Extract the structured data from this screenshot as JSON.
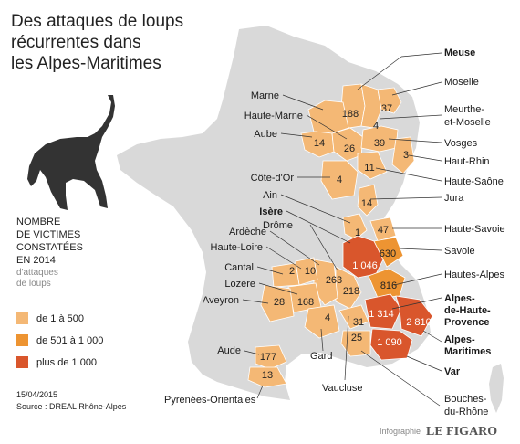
{
  "title": [
    "Des attaques de loups",
    "récurrentes dans",
    "les Alpes-Maritimes"
  ],
  "legend": {
    "title": [
      "NOMBRE",
      "DE VICTIMES",
      "CONSTATÉES",
      "EN 2014"
    ],
    "subtitle": [
      "d'attaques",
      "de loups"
    ],
    "items": [
      {
        "label": "de 1 à 500",
        "color": "#f4b875"
      },
      {
        "label": "de 501 à 1 000",
        "color": "#ed9432"
      },
      {
        "label": "plus de 1 000",
        "color": "#d9562c"
      }
    ]
  },
  "date": "15/04/2015",
  "source": "Source : DREAL Rhône-Alpes",
  "credit_prefix": "Infographie",
  "credit_brand": "LE FIGARO",
  "colors": {
    "land": "#d9d9d9",
    "low": "#f4b875",
    "mid": "#ed9432",
    "high": "#d9562c",
    "wolf": "#333333"
  },
  "icons": {
    "wolf": "howling-wolf-silhouette"
  },
  "departments": [
    {
      "name": "Meuse",
      "bold": true
    },
    {
      "name": "Moselle",
      "bold": false
    },
    {
      "name": "Marne",
      "bold": false
    },
    {
      "name": "Meurthe-",
      "bold": false
    },
    {
      "name": "et-Moselle",
      "bold": false
    },
    {
      "name": "Haute-Marne",
      "bold": false
    },
    {
      "name": "Vosges",
      "bold": false
    },
    {
      "name": "Aube",
      "bold": false
    },
    {
      "name": "Haut-Rhin",
      "bold": false
    },
    {
      "name": "Côte-d'Or",
      "bold": false
    },
    {
      "name": "Haute-Saône",
      "bold": false
    },
    {
      "name": "Ain",
      "bold": false
    },
    {
      "name": "Jura",
      "bold": false
    },
    {
      "name": "Isère",
      "bold": true
    },
    {
      "name": "Drôme",
      "bold": false
    },
    {
      "name": "Haute-Savoie",
      "bold": false
    },
    {
      "name": "Ardèche",
      "bold": false
    },
    {
      "name": "Savoie",
      "bold": false
    },
    {
      "name": "Haute-Loire",
      "bold": false
    },
    {
      "name": "Hautes-Alpes",
      "bold": false
    },
    {
      "name": "Cantal",
      "bold": false
    },
    {
      "name": "Lozère",
      "bold": false
    },
    {
      "name": "Alpes-",
      "bold": true
    },
    {
      "name": "de-Haute-",
      "bold": true
    },
    {
      "name": "Provence",
      "bold": true
    },
    {
      "name": "Aveyron",
      "bold": false
    },
    {
      "name": "Alpes-",
      "bold": true
    },
    {
      "name": "Maritimes",
      "bold": true
    },
    {
      "name": "Gard",
      "bold": false
    },
    {
      "name": "Aude",
      "bold": false
    },
    {
      "name": "Var",
      "bold": true
    },
    {
      "name": "Vaucluse",
      "bold": false
    },
    {
      "name": "Bouches-",
      "bold": false
    },
    {
      "name": "du-Rhône",
      "bold": false
    },
    {
      "name": "Pyrénées-Orientales",
      "bold": false
    }
  ],
  "values": [
    "188",
    "37",
    "4",
    "14",
    "26",
    "39",
    "3",
    "11",
    "4",
    "14",
    "1",
    "47",
    "1 046",
    "630",
    "2",
    "10",
    "263",
    "218",
    "816",
    "28",
    "168",
    "4",
    "1 314",
    "2 810",
    "31",
    "1 090",
    "25",
    "177",
    "13"
  ]
}
